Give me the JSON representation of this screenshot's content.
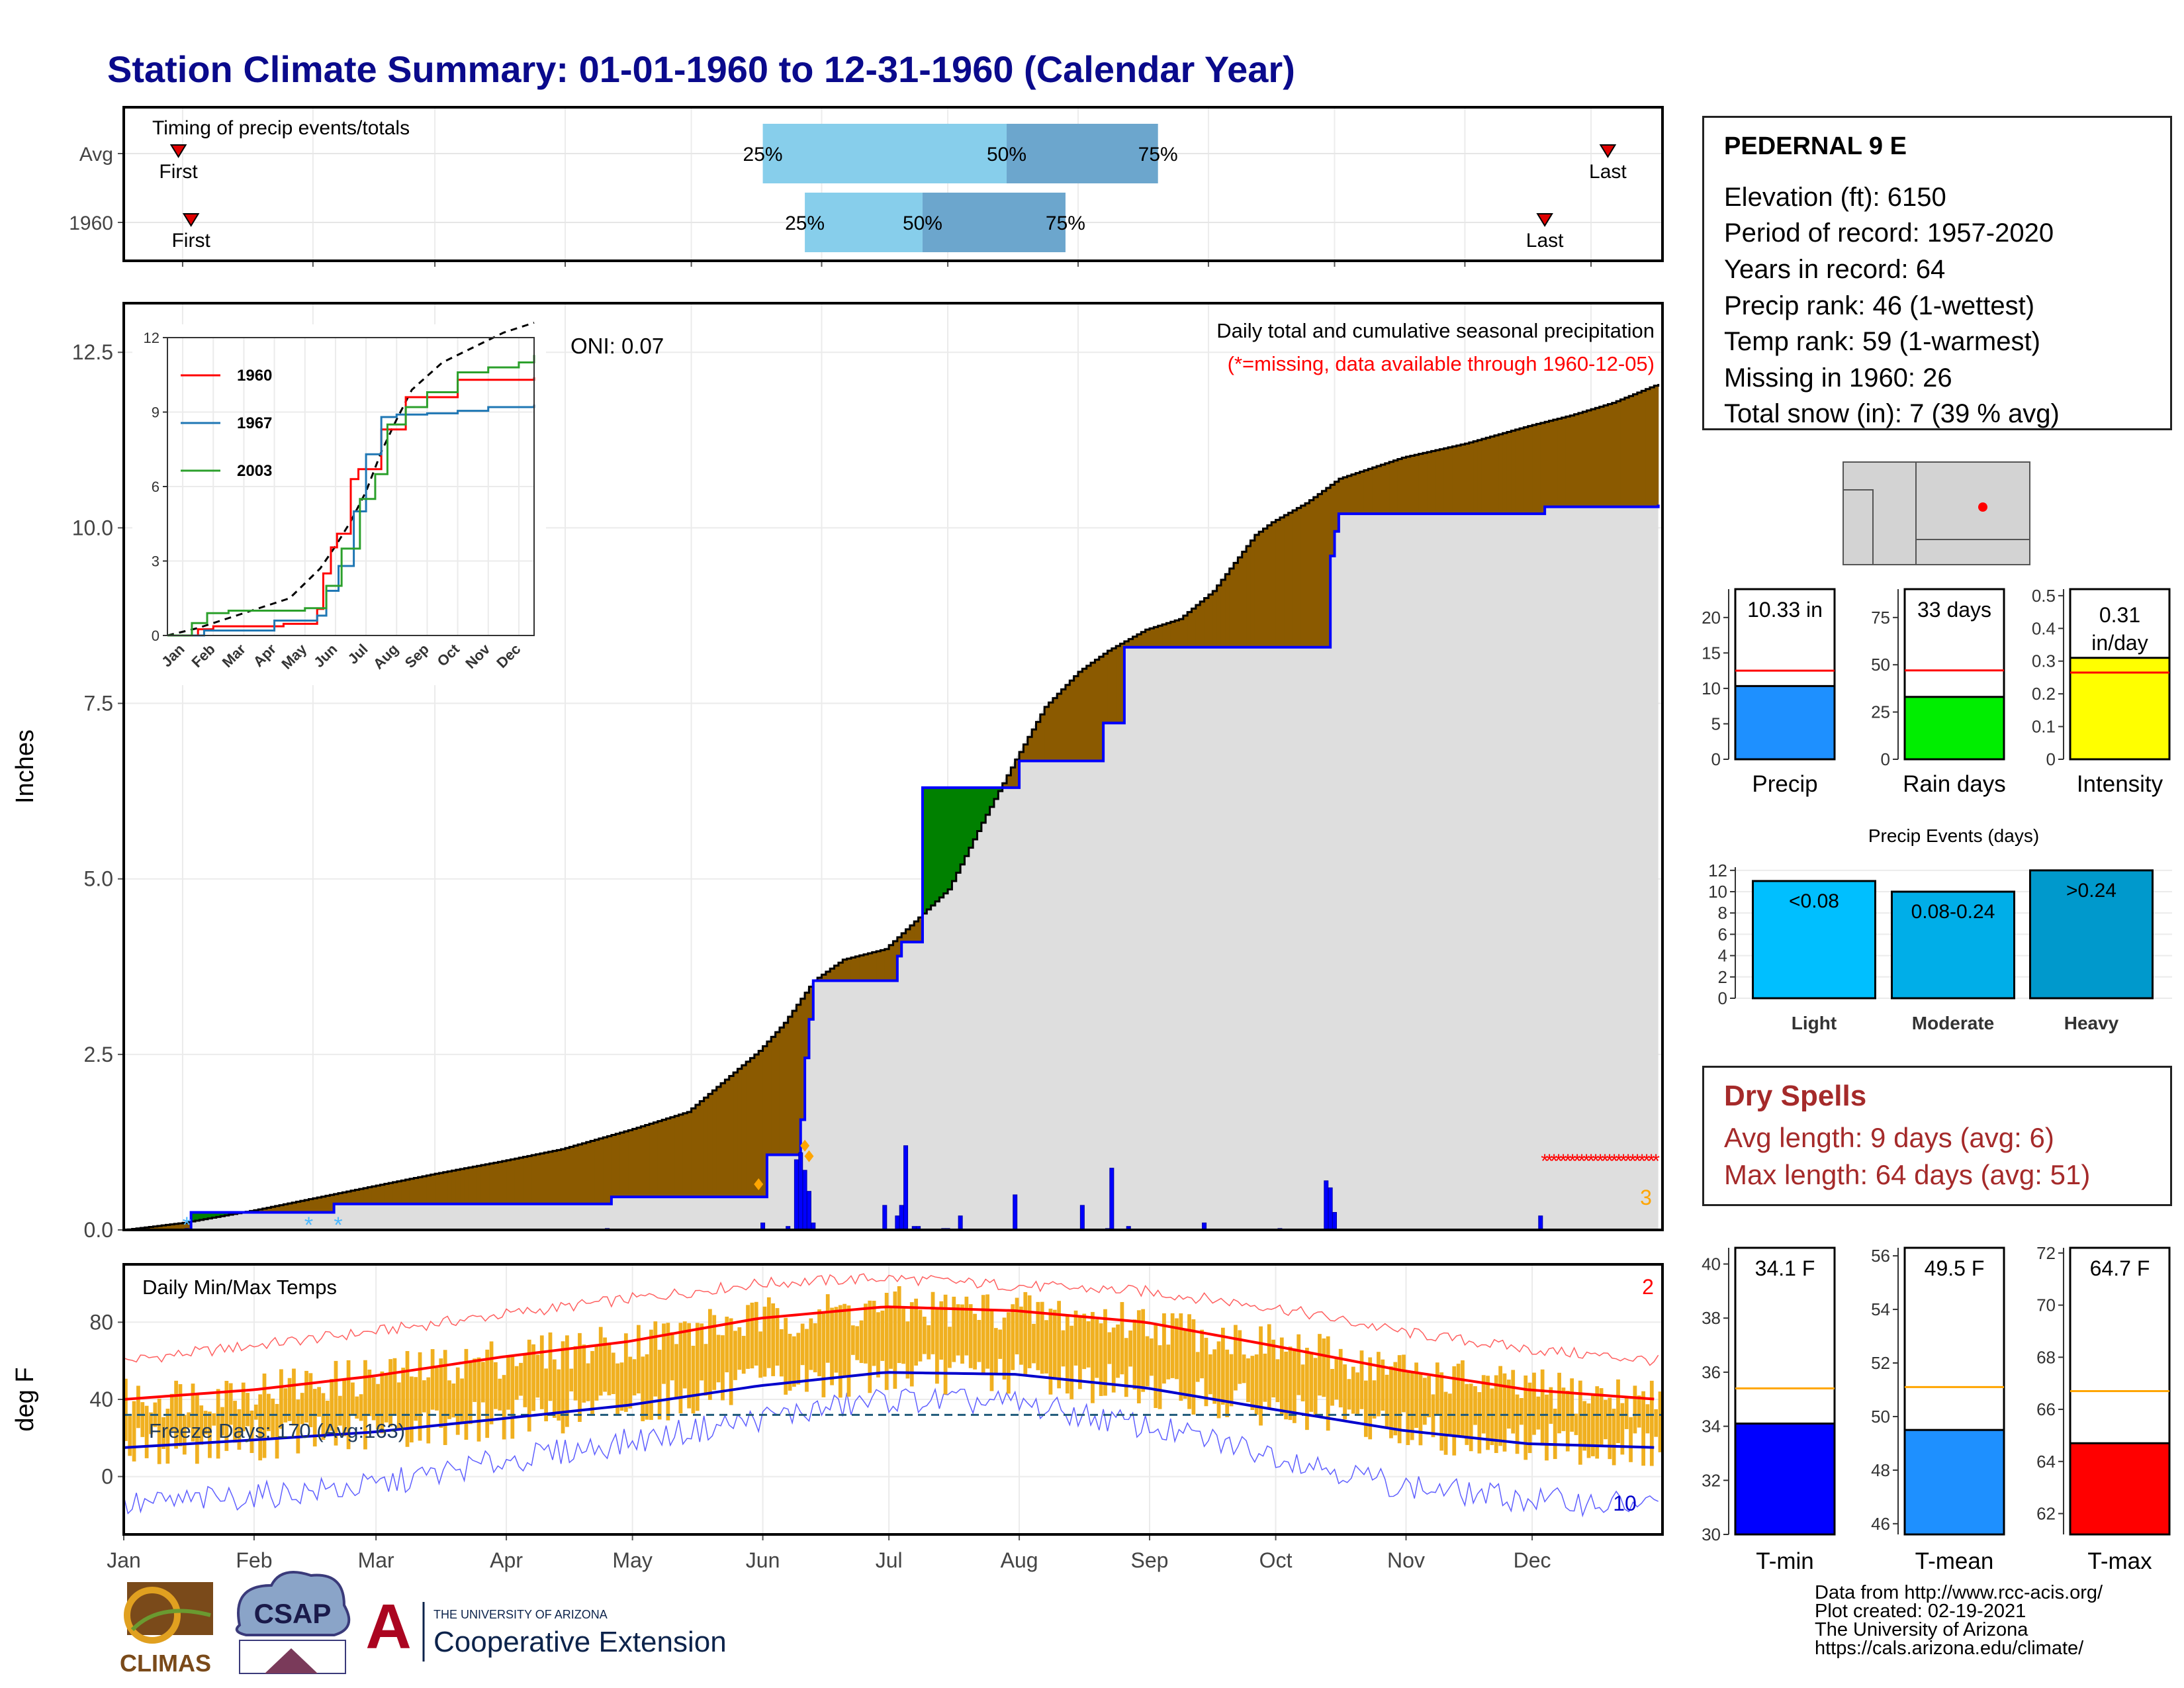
{
  "title": "Station Climate Summary: 01-01-1960 to 12-31-1960 (Calendar Year)",
  "station": {
    "name": "PEDERNAL 9 E",
    "elevation": "Elevation (ft): 6150",
    "period": "Period of record: 1957-2020",
    "years": "Years in record: 64",
    "precip_rank": "Precip rank: 46 (1-wettest)",
    "temp_rank": "Temp rank: 59 (1-warmest)",
    "missing": "Missing in 1960: 26",
    "snow": "Total snow (in): 7 (39 % avg)"
  },
  "dry_spells": {
    "title": "Dry Spells",
    "avg": "Avg length: 9 days (avg: 6)",
    "max": "Max length: 64 days (avg: 51)"
  },
  "footer": {
    "line1": "Data from http://www.rcc-acis.org/",
    "line2": "Plot created: 02-19-2021",
    "line3": "The University of Arizona",
    "line4": "https://cals.arizona.edu/climate/"
  },
  "logos": {
    "climas": "CLIMAS",
    "csap": "CSAP",
    "ua_small": "THE UNIVERSITY OF ARIZONA",
    "ua_big": "Cooperative Extension",
    "ua_letter": "A"
  },
  "colors": {
    "title": "#0a0a8c",
    "deficit": "#8b5a00",
    "surplus": "#008000",
    "normal_fill": "#dedede",
    "precip_line": "#0000ff",
    "temp_bar": "#f0b020",
    "avg_max": "#ff0000",
    "avg_min": "#0000cc",
    "dry_text": "#a52a2a"
  },
  "chart_data": [
    {
      "type": "bar",
      "name": "timing",
      "title": "Timing of precip events/totals",
      "categories": [
        "Avg",
        "1960"
      ],
      "marker_labels": {
        "first": "First",
        "last": "Last"
      },
      "rows": [
        {
          "category": "Avg",
          "first": "1960-01-14",
          "p25": "1960-06-01",
          "p50": "1960-07-29",
          "p75": "1960-09-03",
          "last": "1960-12-19"
        },
        {
          "category": "1960",
          "first": "1960-01-17",
          "p25": "1960-06-11",
          "p50": "1960-07-09",
          "p75": "1960-08-12",
          "last": "1960-12-04"
        }
      ],
      "percent_labels": [
        "25%",
        "50%",
        "75%"
      ]
    },
    {
      "type": "area",
      "name": "precip",
      "title": "Daily total and cumulative seasonal precipitation",
      "subtitle": "(*=missing, data available through 1960-12-05)",
      "annotation": "ONI: 0.07",
      "ylabel": "Inches",
      "ylim": [
        0,
        13.2
      ],
      "yticks": [
        0.0,
        2.5,
        5.0,
        7.5,
        10.0,
        12.5
      ],
      "months": [
        "Jan",
        "Feb",
        "Mar",
        "Apr",
        "May",
        "Jun",
        "Jul",
        "Aug",
        "Sep",
        "Oct",
        "Nov",
        "Dec"
      ],
      "normal_cumulative": {
        "doy": [
          1,
          15,
          32,
          46,
          60,
          75,
          91,
          105,
          121,
          135,
          152,
          158,
          165,
          172,
          182,
          190,
          197,
          205,
          213,
          220,
          228,
          235,
          244,
          252,
          260,
          270,
          274,
          282,
          290,
          305,
          320,
          335,
          345,
          355,
          366
        ],
        "value": [
          0.0,
          0.1,
          0.28,
          0.45,
          0.62,
          0.8,
          0.98,
          1.15,
          1.42,
          1.68,
          2.55,
          2.95,
          3.55,
          3.85,
          4.0,
          4.45,
          4.85,
          5.8,
          6.7,
          7.45,
          7.95,
          8.25,
          8.55,
          8.7,
          9.1,
          9.9,
          10.08,
          10.35,
          10.7,
          11.0,
          11.2,
          11.45,
          11.6,
          11.78,
          12.05
        ]
      },
      "observed_cumulative": {
        "doy": [
          1,
          16,
          17,
          50,
          51,
          116,
          117,
          153,
          154,
          161,
          162,
          163,
          164,
          165,
          184,
          185,
          186,
          190,
          191,
          213,
          214,
          233,
          234,
          238,
          239,
          287,
          288,
          289,
          290,
          339,
          366
        ],
        "value": [
          0.0,
          0.0,
          0.25,
          0.25,
          0.37,
          0.37,
          0.47,
          0.47,
          1.07,
          1.07,
          1.57,
          2.45,
          3.0,
          3.55,
          3.55,
          3.9,
          4.1,
          4.1,
          6.3,
          6.3,
          6.68,
          6.68,
          7.22,
          7.22,
          8.3,
          8.3,
          9.6,
          9.95,
          10.2,
          10.3,
          10.33
        ]
      },
      "daily_bars": {
        "doy": [
          16,
          116,
          153,
          159,
          161,
          162,
          163,
          164,
          165,
          182,
          185,
          186,
          187,
          189,
          190,
          196,
          197,
          200,
          213,
          229,
          235,
          236,
          240,
          258,
          276,
          287,
          288,
          289,
          338
        ],
        "value": [
          0.02,
          0.02,
          0.1,
          0.05,
          1.0,
          1.1,
          0.85,
          0.55,
          0.1,
          0.35,
          0.2,
          0.35,
          1.2,
          0.05,
          0.05,
          0.02,
          0.02,
          0.2,
          0.5,
          0.35,
          0.02,
          0.88,
          0.05,
          0.1,
          0.02,
          0.7,
          0.6,
          0.25,
          0.2
        ]
      },
      "missing_marker_doy": [
        339,
        366
      ],
      "missing_count": "3",
      "bottom_markers_doy": [
        16,
        45,
        52
      ],
      "orange_markers": [
        {
          "doy": 152,
          "value": 0.65
        },
        {
          "doy": 163,
          "value": 1.2
        },
        {
          "doy": 164,
          "value": 1.05
        }
      ]
    },
    {
      "type": "line",
      "name": "inset",
      "xlabel": "",
      "ylabel": "",
      "ylim": [
        0,
        12
      ],
      "yticks": [
        0,
        3,
        6,
        9,
        12
      ],
      "months": [
        "Jan",
        "Feb",
        "Mar",
        "Apr",
        "May",
        "Jun",
        "Jul",
        "Aug",
        "Sep",
        "Oct",
        "Nov",
        "Dec"
      ],
      "series": [
        {
          "name": "1960",
          "color": "#ff0000",
          "x": [
            0,
            1,
            1.5,
            3.8,
            4.9,
            5.1,
            5.35,
            5.55,
            6.0,
            6.25,
            7.0,
            7.7,
            7.8,
            9.5,
            12
          ],
          "y": [
            0,
            0.25,
            0.37,
            0.47,
            1.07,
            2.5,
            3.55,
            4.1,
            6.3,
            6.7,
            8.3,
            8.3,
            9.6,
            10.3,
            10.4
          ]
        },
        {
          "name": "1967",
          "color": "#1f77b4",
          "x": [
            0,
            1.2,
            3.5,
            4.9,
            5.2,
            5.6,
            6.1,
            6.5,
            7.0,
            7.5,
            8.5,
            9.5,
            10.5,
            12
          ],
          "y": [
            0,
            0.2,
            0.6,
            0.8,
            1.8,
            2.8,
            5.0,
            7.3,
            8.8,
            8.9,
            8.95,
            9.05,
            9.2,
            9.3
          ]
        },
        {
          "name": "2003",
          "color": "#2ca02c",
          "x": [
            0,
            0.8,
            1.3,
            2.0,
            4.5,
            5.2,
            5.7,
            6.3,
            6.8,
            7.2,
            7.8,
            8.5,
            9.5,
            10.5,
            11.5,
            12
          ],
          "y": [
            0,
            0.5,
            0.9,
            1.0,
            1.1,
            2.0,
            3.5,
            5.5,
            6.5,
            8.5,
            9.2,
            9.8,
            10.6,
            10.8,
            11.0,
            11.3
          ]
        }
      ],
      "normal": {
        "x": [
          0,
          1,
          2,
          3,
          4,
          5,
          5.5,
          6,
          6.5,
          7,
          7.5,
          8,
          9,
          10,
          11,
          12
        ],
        "y": [
          0,
          0.3,
          0.7,
          1.1,
          1.5,
          2.7,
          3.6,
          4.6,
          5.8,
          7.4,
          8.7,
          9.9,
          11.0,
          11.6,
          12.2,
          12.6
        ]
      }
    },
    {
      "type": "bar",
      "name": "temps",
      "title": "Daily Min/Max Temps",
      "ylabel": "deg F",
      "ylim": [
        -30,
        110
      ],
      "yticks": [
        0,
        40,
        80
      ],
      "months": [
        "Jan",
        "Feb",
        "Mar",
        "Apr",
        "May",
        "Jun",
        "Jul",
        "Aug",
        "Sep",
        "Oct",
        "Nov",
        "Dec"
      ],
      "freeze_label": "Freeze Days: 170 (Avg:163)",
      "freeze_line": 32,
      "count_max_label": "2",
      "count_min_label": "10",
      "avg_max": {
        "doy": [
          1,
          32,
          60,
          91,
          121,
          152,
          182,
          213,
          244,
          274,
          305,
          335,
          366
        ],
        "value": [
          40,
          45,
          52,
          62,
          70,
          82,
          88,
          86,
          80,
          68,
          55,
          45,
          40
        ]
      },
      "avg_min": {
        "doy": [
          1,
          32,
          60,
          91,
          121,
          152,
          182,
          213,
          244,
          274,
          305,
          335,
          366
        ],
        "value": [
          15,
          19,
          23,
          30,
          37,
          47,
          54,
          53,
          46,
          35,
          24,
          17,
          15
        ]
      },
      "rec_max": {
        "doy": [
          1,
          32,
          60,
          91,
          121,
          152,
          182,
          213,
          244,
          274,
          305,
          335,
          366
        ],
        "value": [
          60,
          68,
          75,
          84,
          92,
          100,
          103,
          99,
          96,
          88,
          75,
          66,
          60
        ]
      },
      "rec_min": {
        "doy": [
          1,
          32,
          60,
          91,
          121,
          152,
          182,
          213,
          244,
          274,
          305,
          335,
          366
        ],
        "value": [
          -15,
          -10,
          -5,
          8,
          18,
          30,
          40,
          38,
          26,
          12,
          -5,
          -12,
          -15
        ]
      }
    },
    {
      "type": "bar",
      "name": "precip_totals",
      "categories": [
        "Precip",
        "Rain days",
        "Intensity"
      ],
      "series": [
        {
          "label": "10.33 in",
          "value": 10.33,
          "avg": 12.5,
          "ylim": [
            0,
            24
          ],
          "yticks": [
            0,
            5,
            10,
            15,
            20
          ],
          "color": "#1e90ff"
        },
        {
          "label": "33 days",
          "value": 33,
          "avg": 47,
          "ylim": [
            0,
            90
          ],
          "yticks": [
            0,
            25,
            50,
            75
          ],
          "color": "#00ee00"
        },
        {
          "label": "0.31 in/day",
          "value": 0.31,
          "avg": 0.265,
          "ylim": [
            0,
            0.52
          ],
          "yticks": [
            0.0,
            0.1,
            0.2,
            0.3,
            0.4,
            0.5
          ],
          "color": "#ffff00"
        }
      ]
    },
    {
      "type": "bar",
      "name": "precip_events",
      "title": "Precip Events (days)",
      "categories": [
        "Light",
        "Moderate",
        "Heavy"
      ],
      "values": [
        11,
        10,
        12
      ],
      "value_labels": [
        "<0.08",
        "0.08-0.24",
        ">0.24"
      ],
      "colors": [
        "#00bfff",
        "#00aee8",
        "#0099cc"
      ],
      "ylim": [
        0,
        12.3
      ],
      "yticks": [
        0,
        2,
        4,
        6,
        8,
        10,
        12
      ]
    },
    {
      "type": "bar",
      "name": "temp_totals",
      "categories": [
        "T-min",
        "T-mean",
        "T-max"
      ],
      "series": [
        {
          "label": "34.1 F",
          "value": 34.1,
          "avg": 35.4,
          "ylim": [
            30,
            40.6
          ],
          "yticks": [
            30,
            32,
            34,
            36,
            38,
            40
          ],
          "color": "#0000ff"
        },
        {
          "label": "49.5 F",
          "value": 49.5,
          "avg": 51.1,
          "ylim": [
            45.6,
            56.3
          ],
          "yticks": [
            46,
            48,
            50,
            52,
            54,
            56
          ],
          "color": "#1e90ff"
        },
        {
          "label": "64.7 F",
          "value": 64.7,
          "avg": 66.7,
          "ylim": [
            61.2,
            72.2
          ],
          "yticks": [
            62,
            64,
            66,
            68,
            70,
            72
          ],
          "color": "#ff0000"
        }
      ]
    }
  ]
}
